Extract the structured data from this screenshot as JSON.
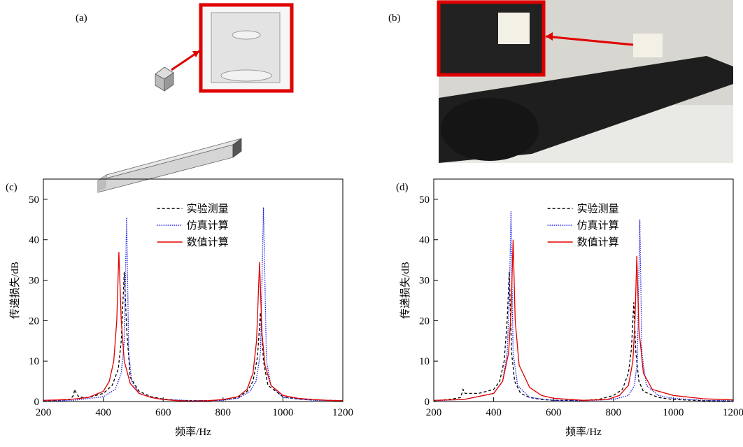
{
  "images": [
    {
      "label": "(a)"
    },
    {
      "label": "(b)"
    }
  ],
  "chart_data": [
    {
      "type": "line",
      "panel_label": "(c)",
      "x_label": "频率/Hz",
      "y_label": "传递损失/dB",
      "xlim": [
        200,
        1200
      ],
      "xticks": [
        200,
        400,
        600,
        800,
        1000,
        1200
      ],
      "ylim": [
        0,
        55
      ],
      "yticks": [
        0,
        10,
        20,
        30,
        40,
        50
      ],
      "grid": false,
      "legend": "upper-center",
      "series": [
        {
          "name": "实验测量",
          "color": "#000000",
          "line_style": "dashed",
          "x": [
            200,
            250,
            290,
            300,
            305,
            310,
            320,
            350,
            400,
            430,
            450,
            460,
            470,
            478,
            490,
            520,
            560,
            600,
            650,
            700,
            750,
            800,
            850,
            880,
            900,
            915,
            925,
            935,
            950,
            1000,
            1050,
            1100,
            1200
          ],
          "values": [
            0.2,
            0.3,
            0.5,
            1.5,
            3,
            2,
            1,
            1,
            2,
            4,
            8,
            15,
            32,
            18,
            6,
            2.5,
            1.2,
            0.6,
            0.3,
            0.2,
            0.2,
            0.4,
            1,
            2.5,
            5,
            11,
            22,
            10,
            4,
            1.2,
            0.6,
            0.4,
            0.2
          ]
        },
        {
          "name": "仿真计算",
          "color": "#2020e0",
          "line_style": "dotted",
          "x": [
            200,
            300,
            400,
            440,
            460,
            470,
            478,
            485,
            495,
            520,
            560,
            600,
            700,
            800,
            850,
            890,
            910,
            925,
            935,
            945,
            960,
            1000,
            1100,
            1200
          ],
          "values": [
            0.1,
            0.3,
            1.2,
            3,
            7,
            15,
            45.5,
            12,
            5,
            2,
            1,
            0.5,
            0.2,
            0.3,
            0.8,
            2.5,
            5,
            12,
            48,
            10,
            4,
            1,
            0.3,
            0.2
          ]
        },
        {
          "name": "数值计算",
          "color": "#e00000",
          "line_style": "solid",
          "x": [
            200,
            250,
            300,
            350,
            400,
            420,
            435,
            445,
            452,
            460,
            470,
            490,
            520,
            560,
            600,
            650,
            700,
            750,
            800,
            850,
            880,
            900,
            912,
            922,
            930,
            940,
            960,
            1000,
            1050,
            1100,
            1150,
            1200
          ],
          "values": [
            0.3,
            0.4,
            0.6,
            1,
            2.5,
            5,
            10,
            20,
            37,
            20,
            10,
            4.5,
            2,
            1,
            0.5,
            0.2,
            0.1,
            0.2,
            0.5,
            1.2,
            3,
            7,
            15,
            34.5,
            17,
            9,
            4,
            1.5,
            0.8,
            0.5,
            0.3,
            0.2
          ]
        }
      ]
    },
    {
      "type": "line",
      "panel_label": "(d)",
      "x_label": "频率/Hz",
      "y_label": "传递损失/dB",
      "xlim": [
        200,
        1200
      ],
      "xticks": [
        200,
        400,
        600,
        800,
        1000,
        1200
      ],
      "ylim": [
        0,
        55
      ],
      "yticks": [
        0,
        10,
        20,
        30,
        40,
        50
      ],
      "grid": false,
      "legend": "upper-center",
      "series": [
        {
          "name": "实验测量",
          "color": "#000000",
          "line_style": "dashed",
          "x": [
            200,
            250,
            290,
            298,
            305,
            320,
            350,
            400,
            420,
            435,
            445,
            452,
            460,
            470,
            490,
            520,
            560,
            600,
            700,
            750,
            800,
            830,
            850,
            860,
            868,
            875,
            885,
            900,
            950,
            1000,
            1100,
            1200
          ],
          "values": [
            0.2,
            0.5,
            1,
            3,
            2,
            2,
            2,
            3,
            5,
            10,
            20,
            32,
            12,
            5,
            2,
            1,
            0.5,
            0.3,
            0.3,
            0.5,
            1.5,
            3,
            7,
            13,
            24.5,
            12,
            5,
            2.5,
            1,
            0.5,
            0.2,
            0.1
          ]
        },
        {
          "name": "仿真计算",
          "color": "#2020e0",
          "line_style": "dotted",
          "x": [
            200,
            300,
            400,
            430,
            445,
            452,
            458,
            465,
            480,
            520,
            600,
            700,
            800,
            850,
            870,
            880,
            888,
            895,
            910,
            950,
            1000,
            1100,
            1200
          ],
          "values": [
            0.2,
            0.5,
            2,
            5,
            12,
            25,
            47,
            12,
            4,
            1,
            0.3,
            0.2,
            0.5,
            1.5,
            4,
            10,
            45,
            12,
            4,
            1.5,
            0.8,
            0.3,
            0.2
          ]
        },
        {
          "name": "数值计算",
          "color": "#e00000",
          "line_style": "solid",
          "x": [
            200,
            300,
            400,
            430,
            450,
            458,
            465,
            472,
            485,
            520,
            560,
            600,
            700,
            780,
            820,
            850,
            865,
            872,
            878,
            885,
            900,
            930,
            1000,
            1100,
            1200
          ],
          "values": [
            0.3,
            0.5,
            2,
            5,
            12,
            22,
            40,
            20,
            9,
            3.5,
            1.5,
            0.8,
            0.3,
            0.5,
            1.5,
            4,
            10,
            20,
            36,
            18,
            7,
            3,
            1.5,
            0.7,
            0.4
          ]
        }
      ]
    }
  ]
}
